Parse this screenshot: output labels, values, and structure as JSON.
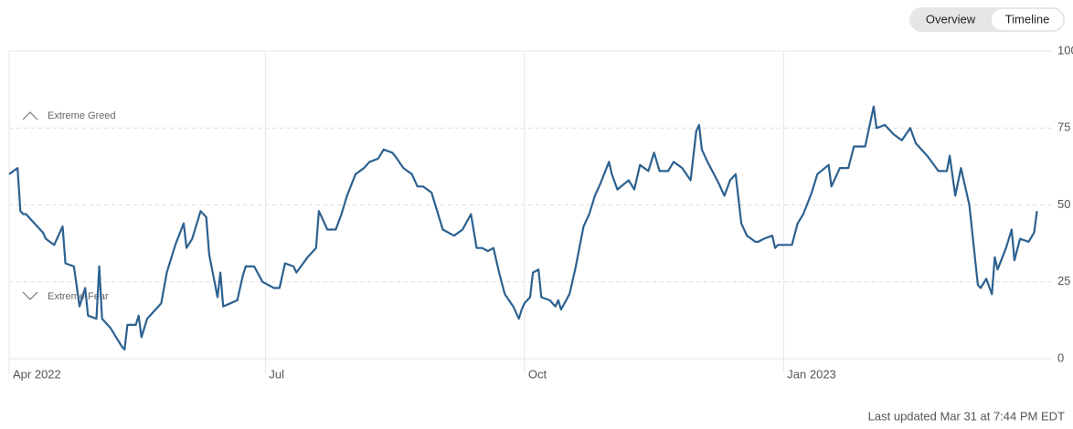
{
  "buttons": [
    "Overview",
    "Timeline"
  ],
  "footer": "Last updated Mar 31 at 7:44 PM EDT",
  "chart_data": {
    "type": "line",
    "annotations": [
      "Extreme Greed",
      "Extreme Fear"
    ],
    "x": [
      0,
      3,
      4,
      5,
      6,
      10,
      12,
      13,
      16,
      19,
      20,
      23,
      25,
      27,
      28,
      31,
      32,
      33,
      36,
      40,
      41,
      42,
      45,
      46,
      47,
      49,
      52,
      54,
      56,
      59,
      62,
      63,
      65,
      68,
      70,
      71,
      74,
      75,
      76,
      81,
      83,
      84,
      87,
      90,
      94,
      96,
      98,
      101,
      102,
      106,
      109,
      110,
      113,
      116,
      118,
      120,
      123,
      126,
      128,
      131,
      133,
      136,
      137,
      140,
      143,
      145,
      147,
      150,
      151,
      154,
      158,
      161,
      164,
      166,
      168,
      170,
      172,
      174,
      176,
      179,
      181,
      182,
      183,
      185,
      186,
      188,
      189,
      192,
      194,
      195,
      196,
      199,
      201,
      204,
      206,
      208,
      210,
      213,
      214,
      216,
      220,
      222,
      224,
      227,
      229,
      231,
      234,
      236,
      239,
      242,
      244,
      245,
      246,
      248,
      252,
      254,
      256,
      258,
      260,
      262,
      265,
      266,
      268,
      271,
      272,
      273,
      278,
      280,
      282,
      285,
      287,
      291,
      292,
      295,
      298,
      300,
      304,
      307,
      308,
      311,
      312,
      314,
      317,
      320,
      322,
      326,
      330,
      333,
      334,
      336,
      338,
      341,
      344,
      345,
      347,
      349,
      350,
      351,
      354,
      356,
      357,
      359,
      362,
      364,
      365
    ],
    "series": [
      {
        "color": "#2c6190",
        "values": [
          60,
          62,
          48,
          47,
          47,
          43,
          41,
          39,
          37,
          43,
          31,
          30,
          17,
          23,
          14,
          13,
          30,
          13,
          10,
          4,
          3,
          11,
          11,
          14,
          7,
          13,
          16,
          18,
          28,
          37,
          44,
          36,
          39,
          48,
          46,
          34,
          20,
          28,
          17,
          19,
          27,
          30,
          30,
          25,
          23,
          23,
          31,
          30,
          28,
          33,
          36,
          48,
          42,
          42,
          47,
          53,
          60,
          62,
          64,
          65,
          68,
          67,
          66,
          62,
          60,
          56,
          56,
          54,
          51,
          42,
          40,
          42,
          47,
          36,
          36,
          35,
          36,
          28,
          21,
          17,
          13,
          16,
          18,
          20,
          28,
          29,
          20,
          19,
          17,
          19,
          16,
          21,
          29,
          43,
          47,
          53,
          57,
          64,
          60,
          55,
          58,
          55,
          63,
          61,
          67,
          61,
          61,
          64,
          62,
          58,
          74,
          76,
          68,
          64,
          57,
          53,
          58,
          60,
          44,
          40,
          38,
          38,
          39,
          40,
          36,
          37,
          37,
          44,
          47,
          54,
          60,
          63,
          56,
          62,
          62,
          69,
          69,
          82,
          75,
          76,
          75,
          73,
          71,
          75,
          70,
          66,
          61,
          61,
          66,
          53,
          62,
          50,
          24,
          23,
          26,
          21,
          33,
          29,
          36,
          42,
          32,
          39,
          38,
          41,
          48
        ]
      }
    ],
    "xlim": [
      0,
      370
    ],
    "xticks": [
      {
        "value": 0,
        "label": "Apr 2022"
      },
      {
        "value": 91,
        "label": "Jul"
      },
      {
        "value": 183,
        "label": "Oct"
      },
      {
        "value": 275,
        "label": "Jan 2023"
      }
    ],
    "ylim": [
      0,
      100
    ],
    "yticks": [
      0,
      25,
      50,
      75,
      100
    ],
    "grid": true
  }
}
